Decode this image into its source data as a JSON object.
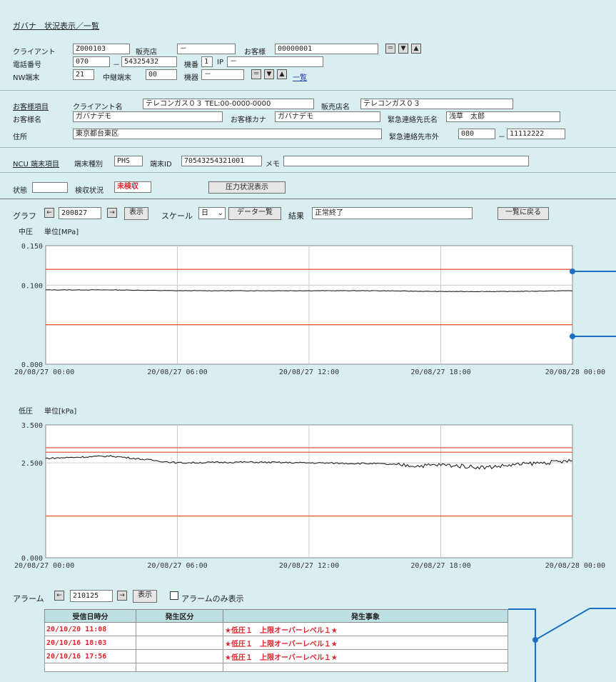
{
  "title": "ガバナ　状況表示／一覧",
  "client_row": {
    "client_label": "クライアント",
    "client_value": "Z000103",
    "dealer_label": "販売店",
    "dealer_value": "－",
    "customer_label": "お客様",
    "customer_value": "00000001"
  },
  "phone_row": {
    "phone_label": "電話番号",
    "phone_area": "070",
    "phone_number": "54325432",
    "unit_no_label": "機番",
    "unit_no_value": "1",
    "ip_label": "IP",
    "ip_value": "－"
  },
  "nw_row": {
    "nw_label": "NW端末",
    "nw_value": "21",
    "relay_label": "中継端末",
    "relay_value": "00",
    "device_label": "機器",
    "device_value": "－",
    "list_link": "一覧"
  },
  "customer_items": {
    "section_label": "お客様項目",
    "client_name_label": "クライアント名",
    "client_name_value": "テレコンガス０３ TEL:00-0000-0000",
    "dealer_name_label": "販売店名",
    "dealer_name_value": "テレコンガス０３",
    "customer_name_label": "お客様名",
    "customer_name_value": "ガバナデモ",
    "customer_kana_label": "お客様カナ",
    "customer_kana_value": "ガバナデモ",
    "emergency_name_label": "緊急連絡先氏名",
    "emergency_name_value": "浅草　太郎",
    "address_label": "住所",
    "address_value": "東京都台東区",
    "emergency_phone_label": "緊急連絡先市外",
    "emergency_area": "080",
    "emergency_number": "11112222"
  },
  "ncu": {
    "section_label": "NCU 端末項目",
    "type_label": "端末種別",
    "type_value": "PHS",
    "id_label": "端末ID",
    "id_value": "70543254321001",
    "memo_label": "メモ",
    "memo_value": ""
  },
  "status_row": {
    "status_label": "状態",
    "status_value": "",
    "inspection_label": "検収状況",
    "inspection_value": "未検収",
    "pressure_button": "圧力状況表示"
  },
  "graph_row": {
    "graph_label": "グラフ",
    "prev": "←",
    "date_value": "200827",
    "next": "→",
    "show_button": "表示",
    "scale_label": "スケール",
    "scale_value": "日",
    "data_list_button": "データ一覧",
    "result_label": "結果",
    "result_value": "正常終了",
    "back_button": "一覧に戻る"
  },
  "chart_data": [
    {
      "type": "line",
      "title": "中圧",
      "ylabel": "単位[MPa]",
      "x_ticks": [
        "20/08/27 00:00",
        "20/08/27 06:00",
        "20/08/27 12:00",
        "20/08/27 18:00",
        "20/08/28 00:00"
      ],
      "y_ticks": [
        "0.150",
        "0.100",
        "0.000"
      ],
      "ylim": [
        0,
        0.15
      ],
      "thresholds": [
        0.12,
        0.05
      ],
      "series": [
        {
          "x_hours": [
            0,
            3,
            6,
            9,
            12,
            15,
            18,
            21,
            24
          ],
          "values": [
            0.094,
            0.094,
            0.093,
            0.093,
            0.093,
            0.093,
            0.092,
            0.092,
            0.093
          ]
        }
      ],
      "line_color": "#222222",
      "threshold_color": "#e05a3a",
      "grid": true
    },
    {
      "type": "line",
      "title": "低圧",
      "ylabel": "単位[kPa]",
      "x_ticks": [
        "20/08/27 00:00",
        "20/08/27 06:00",
        "20/08/27 12:00",
        "20/08/27 18:00",
        "20/08/28 00:00"
      ],
      "y_ticks": [
        "3.500",
        "2.500",
        "0.000"
      ],
      "ylim": [
        0,
        3.5
      ],
      "thresholds": [
        2.9,
        2.78,
        1.1
      ],
      "series": [
        {
          "x_hours": [
            0,
            3,
            6,
            9,
            12,
            15,
            17,
            18,
            20,
            22,
            24
          ],
          "values": [
            2.62,
            2.68,
            2.5,
            2.52,
            2.5,
            2.48,
            2.42,
            2.45,
            2.38,
            2.48,
            2.55
          ]
        }
      ],
      "line_color": "#222222",
      "threshold_color": "#e05a3a",
      "grid": true
    }
  ],
  "alarm_row": {
    "alarm_label": "アラーム",
    "prev": "←",
    "date_value": "210125",
    "next": "→",
    "show_button": "表示",
    "alarm_only_label": "アラームのみ表示"
  },
  "alarm_table": {
    "headers": [
      "受信日時分",
      "発生区分",
      "発生事象"
    ],
    "rows": [
      [
        "20/10/20 11:08",
        "",
        "★低圧１　上限オーバーレベル１★"
      ],
      [
        "20/10/16 18:03",
        "",
        "★低圧１　上限オーバーレベル１★"
      ],
      [
        "20/10/16 17:56",
        "",
        "★低圧１　上限オーバーレベル１★"
      ],
      [
        "",
        "",
        ""
      ]
    ]
  },
  "colors": {
    "background": "#d9eef0",
    "alert_red": "#e0242c",
    "callout_blue": "#1c6fc2"
  }
}
